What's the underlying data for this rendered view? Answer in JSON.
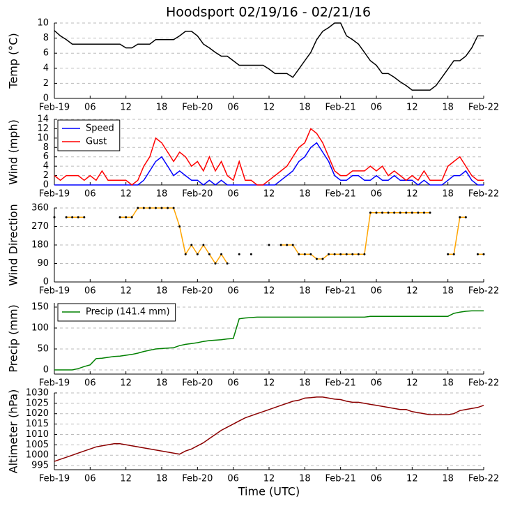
{
  "chart_data": [
    {
      "type": "line",
      "title": "Hoodsport 02/19/16 - 02/21/16",
      "ylabel": "Temp (°C)",
      "x": [
        0,
        1,
        2,
        3,
        4,
        5,
        6,
        7,
        8,
        9,
        10,
        11,
        12,
        13,
        14,
        15,
        16,
        17,
        18,
        19,
        20,
        21,
        22,
        23,
        24,
        25,
        26,
        27,
        28,
        29,
        30,
        31,
        32,
        33,
        34,
        35,
        36,
        37,
        38,
        39,
        40,
        41,
        42,
        43,
        44,
        45,
        46,
        47,
        48,
        49,
        50,
        51,
        52,
        53,
        54,
        55,
        56,
        57,
        58,
        59,
        60,
        61,
        62,
        63,
        64,
        65,
        66,
        67,
        68,
        69,
        70,
        71,
        72
      ],
      "series": [
        {
          "color": "#000000",
          "values": [
            9,
            8.3,
            7.8,
            7.2,
            7.2,
            7.2,
            7.2,
            7.2,
            7.2,
            7.2,
            7.2,
            7.2,
            6.7,
            6.7,
            7.2,
            7.2,
            7.2,
            7.8,
            7.8,
            7.8,
            7.8,
            8.3,
            8.9,
            8.9,
            8.3,
            7.2,
            6.7,
            6.1,
            5.6,
            5.6,
            5.0,
            4.4,
            4.4,
            4.4,
            4.4,
            4.4,
            3.9,
            3.3,
            3.3,
            3.3,
            2.8,
            3.9,
            5.0,
            6.1,
            7.8,
            8.9,
            9.4,
            10,
            10,
            8.3,
            7.8,
            7.2,
            6.1,
            5.0,
            4.4,
            3.3,
            3.3,
            2.8,
            2.2,
            1.7,
            1.1,
            1.1,
            1.1,
            1.1,
            1.7,
            2.8,
            3.9,
            5.0,
            5.0,
            5.6,
            6.7,
            8.3,
            8.3
          ]
        }
      ],
      "xlim": [
        0,
        72
      ],
      "ylim": [
        0,
        10
      ],
      "yticks": [
        0,
        2,
        4,
        6,
        8,
        10
      ],
      "grid": true,
      "xticks": [
        {
          "value": 0,
          "label": "Feb-19"
        },
        {
          "value": 6,
          "label": "06"
        },
        {
          "value": 12,
          "label": "12"
        },
        {
          "value": 18,
          "label": "18"
        },
        {
          "value": 24,
          "label": "Feb-20"
        },
        {
          "value": 30,
          "label": "06"
        },
        {
          "value": 36,
          "label": "12"
        },
        {
          "value": 42,
          "label": "18"
        },
        {
          "value": 48,
          "label": "Feb-21"
        },
        {
          "value": 54,
          "label": "06"
        },
        {
          "value": 60,
          "label": "12"
        },
        {
          "value": 66,
          "label": "18"
        },
        {
          "value": 72,
          "label": "Feb-22"
        }
      ]
    },
    {
      "type": "line",
      "ylabel": "Wind (mph)",
      "legend": "upper left",
      "x": [
        0,
        1,
        2,
        3,
        4,
        5,
        6,
        7,
        8,
        9,
        10,
        11,
        12,
        13,
        14,
        15,
        16,
        17,
        18,
        19,
        20,
        21,
        22,
        23,
        24,
        25,
        26,
        27,
        28,
        29,
        30,
        31,
        32,
        33,
        34,
        35,
        36,
        37,
        38,
        39,
        40,
        41,
        42,
        43,
        44,
        45,
        46,
        47,
        48,
        49,
        50,
        51,
        52,
        53,
        54,
        55,
        56,
        57,
        58,
        59,
        60,
        61,
        62,
        63,
        64,
        65,
        66,
        67,
        68,
        69,
        70,
        71,
        72
      ],
      "series": [
        {
          "name": "Speed",
          "color": "#0000ff",
          "values": [
            0,
            0,
            0,
            0,
            0,
            0,
            0,
            0,
            0,
            0,
            0,
            0,
            0,
            0,
            0,
            1,
            3,
            5,
            6,
            4,
            2,
            3,
            2,
            1,
            1,
            0,
            1,
            0,
            1,
            0,
            0,
            0,
            0,
            0,
            0,
            0,
            0,
            0,
            1,
            2,
            3,
            5,
            6,
            8,
            9,
            7,
            5,
            2,
            1,
            1,
            2,
            2,
            1,
            1,
            2,
            1,
            1,
            2,
            1,
            1,
            1,
            0,
            1,
            0,
            0,
            0,
            1,
            2,
            2,
            3,
            1,
            0,
            0
          ]
        },
        {
          "name": "Gust",
          "color": "#ff0000",
          "values": [
            2,
            1,
            2,
            2,
            2,
            1,
            2,
            1,
            3,
            1,
            1,
            1,
            1,
            0,
            1,
            4,
            6,
            10,
            9,
            7,
            5,
            7,
            6,
            4,
            5,
            3,
            6,
            3,
            5,
            2,
            1,
            5,
            1,
            1,
            0,
            0,
            1,
            2,
            3,
            4,
            6,
            8,
            9,
            12,
            11,
            9,
            6,
            3,
            2,
            2,
            3,
            3,
            3,
            4,
            3,
            4,
            2,
            3,
            2,
            1,
            2,
            1,
            3,
            1,
            1,
            1,
            4,
            5,
            6,
            4,
            2,
            1,
            1
          ]
        }
      ],
      "xlim": [
        0,
        72
      ],
      "ylim": [
        0,
        14
      ],
      "yticks": [
        0,
        2,
        4,
        6,
        8,
        10,
        12,
        14
      ],
      "grid": true,
      "xticks": [
        {
          "value": 0,
          "label": "Feb-19"
        },
        {
          "value": 6,
          "label": "06"
        },
        {
          "value": 12,
          "label": "12"
        },
        {
          "value": 18,
          "label": "18"
        },
        {
          "value": 24,
          "label": "Feb-20"
        },
        {
          "value": 30,
          "label": "06"
        },
        {
          "value": 36,
          "label": "12"
        },
        {
          "value": 42,
          "label": "18"
        },
        {
          "value": 48,
          "label": "Feb-21"
        },
        {
          "value": 54,
          "label": "06"
        },
        {
          "value": 60,
          "label": "12"
        },
        {
          "value": 66,
          "label": "18"
        },
        {
          "value": 72,
          "label": "Feb-22"
        }
      ]
    },
    {
      "type": "line",
      "ylabel": "Wind Direction",
      "markers": true,
      "marker_color": "#000000",
      "x": [
        0,
        1,
        2,
        3,
        4,
        5,
        6,
        7,
        8,
        9,
        10,
        11,
        12,
        13,
        14,
        15,
        16,
        17,
        18,
        19,
        20,
        21,
        22,
        23,
        24,
        25,
        26,
        27,
        28,
        29,
        30,
        31,
        32,
        33,
        34,
        35,
        36,
        37,
        38,
        39,
        40,
        41,
        42,
        43,
        44,
        45,
        46,
        47,
        48,
        49,
        50,
        51,
        52,
        53,
        54,
        55,
        56,
        57,
        58,
        59,
        60,
        61,
        62,
        63,
        64,
        65,
        66,
        67,
        68,
        69,
        70,
        71,
        72
      ],
      "series": [
        {
          "color": "#ffa500",
          "values": [
            315,
            null,
            315,
            315,
            315,
            315,
            null,
            null,
            null,
            null,
            null,
            315,
            315,
            315,
            360,
            360,
            360,
            360,
            360,
            360,
            360,
            270,
            135,
            180,
            135,
            180,
            135,
            90,
            135,
            90,
            null,
            135,
            null,
            135,
            null,
            null,
            180,
            null,
            180,
            180,
            180,
            135,
            135,
            135,
            112,
            112,
            135,
            135,
            135,
            135,
            135,
            135,
            135,
            337,
            337,
            337,
            337,
            337,
            337,
            337,
            337,
            337,
            337,
            337,
            null,
            null,
            135,
            135,
            315,
            315,
            null,
            135,
            135
          ]
        }
      ],
      "xlim": [
        0,
        72
      ],
      "ylim": [
        0,
        360
      ],
      "yticks": [
        0,
        90,
        180,
        270,
        360
      ],
      "grid": true,
      "xticks": [
        {
          "value": 0,
          "label": "Feb-19"
        },
        {
          "value": 6,
          "label": "06"
        },
        {
          "value": 12,
          "label": "12"
        },
        {
          "value": 18,
          "label": "18"
        },
        {
          "value": 24,
          "label": "Feb-20"
        },
        {
          "value": 30,
          "label": "06"
        },
        {
          "value": 36,
          "label": "12"
        },
        {
          "value": 42,
          "label": "18"
        },
        {
          "value": 48,
          "label": "Feb-21"
        },
        {
          "value": 54,
          "label": "06"
        },
        {
          "value": 60,
          "label": "12"
        },
        {
          "value": 66,
          "label": "18"
        },
        {
          "value": 72,
          "label": "Feb-22"
        }
      ]
    },
    {
      "type": "line",
      "ylabel": "Precip (mm)",
      "legend": "upper left",
      "x": [
        0,
        1,
        2,
        3,
        4,
        5,
        6,
        7,
        8,
        9,
        10,
        11,
        12,
        13,
        14,
        15,
        16,
        17,
        18,
        19,
        20,
        21,
        22,
        23,
        24,
        25,
        26,
        27,
        28,
        29,
        30,
        31,
        32,
        33,
        34,
        35,
        36,
        37,
        38,
        39,
        40,
        41,
        42,
        43,
        44,
        45,
        46,
        47,
        48,
        49,
        50,
        51,
        52,
        53,
        54,
        55,
        56,
        57,
        58,
        59,
        60,
        61,
        62,
        63,
        64,
        65,
        66,
        67,
        68,
        69,
        70,
        71,
        72
      ],
      "series": [
        {
          "name": "Precip (141.4 mm)",
          "color": "#008000",
          "values": [
            0,
            0,
            0,
            0,
            3,
            8,
            12,
            27,
            28,
            30,
            32,
            33,
            35,
            37,
            40,
            44,
            47,
            50,
            51,
            52,
            53,
            58,
            61,
            63,
            65,
            68,
            70,
            71,
            72,
            74,
            75,
            122,
            124,
            125,
            126,
            126,
            126,
            126,
            126,
            126,
            126,
            126,
            126,
            126,
            126,
            126,
            126,
            126,
            126,
            126,
            126,
            126,
            126,
            128,
            128,
            128,
            128,
            128,
            128,
            128,
            128,
            128,
            128,
            128,
            128,
            128,
            128,
            135,
            138,
            140,
            141,
            141,
            141
          ]
        }
      ],
      "xlim": [
        0,
        72
      ],
      "ylim": [
        -10,
        160
      ],
      "yticks": [
        0,
        50,
        100,
        150
      ],
      "grid": true,
      "xticks": [
        {
          "value": 0,
          "label": "Feb-19"
        },
        {
          "value": 6,
          "label": "06"
        },
        {
          "value": 12,
          "label": "12"
        },
        {
          "value": 18,
          "label": "18"
        },
        {
          "value": 24,
          "label": "Feb-20"
        },
        {
          "value": 30,
          "label": "06"
        },
        {
          "value": 36,
          "label": "12"
        },
        {
          "value": 42,
          "label": "18"
        },
        {
          "value": 48,
          "label": "Feb-21"
        },
        {
          "value": 54,
          "label": "06"
        },
        {
          "value": 60,
          "label": "12"
        },
        {
          "value": 66,
          "label": "18"
        },
        {
          "value": 72,
          "label": "Feb-22"
        }
      ]
    },
    {
      "type": "line",
      "ylabel": "Altimeter (hPa)",
      "xlabel": "Time (UTC)",
      "x": [
        0,
        1,
        2,
        3,
        4,
        5,
        6,
        7,
        8,
        9,
        10,
        11,
        12,
        13,
        14,
        15,
        16,
        17,
        18,
        19,
        20,
        21,
        22,
        23,
        24,
        25,
        26,
        27,
        28,
        29,
        30,
        31,
        32,
        33,
        34,
        35,
        36,
        37,
        38,
        39,
        40,
        41,
        42,
        43,
        44,
        45,
        46,
        47,
        48,
        49,
        50,
        51,
        52,
        53,
        54,
        55,
        56,
        57,
        58,
        59,
        60,
        61,
        62,
        63,
        64,
        65,
        66,
        67,
        68,
        69,
        70,
        71,
        72
      ],
      "series": [
        {
          "color": "#8b0000",
          "values": [
            997,
            998,
            999,
            1000,
            1001,
            1002,
            1003,
            1004,
            1004.5,
            1005,
            1005.5,
            1005.5,
            1005,
            1004.5,
            1004,
            1003.5,
            1003,
            1002.5,
            1002,
            1001.5,
            1001,
            1000.5,
            1002,
            1003,
            1004.5,
            1006,
            1008,
            1010,
            1012,
            1013.5,
            1015,
            1016.5,
            1018,
            1019,
            1020,
            1021,
            1022,
            1023,
            1024,
            1025,
            1026,
            1026.5,
            1027.5,
            1027.7,
            1028,
            1028,
            1027.5,
            1027,
            1026.8,
            1026,
            1025.5,
            1025.5,
            1025,
            1024.5,
            1024,
            1023.5,
            1023,
            1022.5,
            1022,
            1022,
            1021,
            1020.5,
            1020,
            1019.5,
            1019.5,
            1019.5,
            1019.5,
            1020,
            1021.5,
            1022,
            1022.5,
            1023,
            1024
          ]
        }
      ],
      "xlim": [
        0,
        72
      ],
      "ylim": [
        993,
        1030
      ],
      "yticks": [
        995,
        1000,
        1005,
        1010,
        1015,
        1020,
        1025,
        1030
      ],
      "grid": true,
      "xticks": [
        {
          "value": 0,
          "label": "Feb-19"
        },
        {
          "value": 6,
          "label": "06"
        },
        {
          "value": 12,
          "label": "12"
        },
        {
          "value": 18,
          "label": "18"
        },
        {
          "value": 24,
          "label": "Feb-20"
        },
        {
          "value": 30,
          "label": "06"
        },
        {
          "value": 36,
          "label": "12"
        },
        {
          "value": 42,
          "label": "18"
        },
        {
          "value": 48,
          "label": "Feb-21"
        },
        {
          "value": 54,
          "label": "06"
        },
        {
          "value": 60,
          "label": "12"
        },
        {
          "value": 66,
          "label": "18"
        },
        {
          "value": 72,
          "label": "Feb-22"
        }
      ]
    }
  ]
}
